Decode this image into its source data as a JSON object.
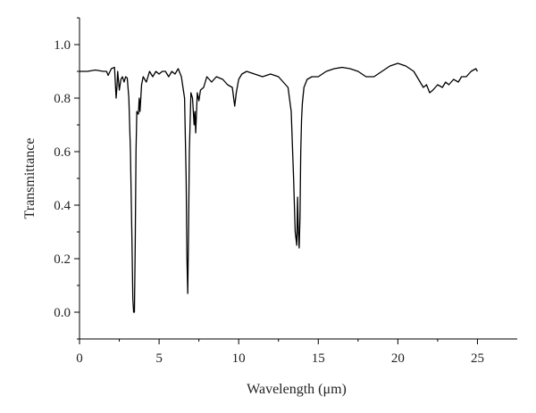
{
  "chart_data": {
    "type": "line",
    "xlabel": "Wavelength (μm)",
    "ylabel": "Transmittance",
    "xlim": [
      0,
      27.5
    ],
    "ylim": [
      -0.1,
      1.1
    ],
    "x_major_ticks": [
      0,
      5,
      10,
      15,
      20,
      25
    ],
    "x_tick_labels": [
      "0",
      "5",
      "10",
      "15",
      "20",
      "25"
    ],
    "y_major_ticks": [
      0.0,
      0.2,
      0.4,
      0.6,
      0.8,
      1.0
    ],
    "y_tick_labels": [
      "0.0",
      "0.2",
      "0.4",
      "0.6",
      "0.8",
      "1.0"
    ],
    "grid": false,
    "series": [
      {
        "color": "#000000",
        "x": [
          0.0,
          0.5,
          1.0,
          1.5,
          1.7,
          1.8,
          2.0,
          2.2,
          2.3,
          2.35,
          2.4,
          2.5,
          2.6,
          2.7,
          2.8,
          2.9,
          3.0,
          3.1,
          3.2,
          3.3,
          3.35,
          3.4,
          3.45,
          3.5,
          3.55,
          3.6,
          3.7,
          3.75,
          3.8,
          3.9,
          4.0,
          4.2,
          4.4,
          4.6,
          4.8,
          5.0,
          5.2,
          5.4,
          5.6,
          5.8,
          6.0,
          6.2,
          6.4,
          6.6,
          6.7,
          6.75,
          6.8,
          6.85,
          6.9,
          7.0,
          7.1,
          7.2,
          7.25,
          7.3,
          7.4,
          7.5,
          7.6,
          7.8,
          8.0,
          8.3,
          8.6,
          9.0,
          9.3,
          9.6,
          9.75,
          9.85,
          10.0,
          10.2,
          10.5,
          11.0,
          11.5,
          12.0,
          12.5,
          12.8,
          13.1,
          13.3,
          13.45,
          13.55,
          13.65,
          13.7,
          13.75,
          13.8,
          13.85,
          13.9,
          13.95,
          14.0,
          14.1,
          14.3,
          14.6,
          15.0,
          15.5,
          16.0,
          16.5,
          17.0,
          17.5,
          18.0,
          18.5,
          19.0,
          19.5,
          20.0,
          20.5,
          21.0,
          21.3,
          21.6,
          21.8,
          22.0,
          22.2,
          22.5,
          22.8,
          23.0,
          23.2,
          23.5,
          23.8,
          24.0,
          24.3,
          24.6,
          24.9,
          25.0
        ],
        "y": [
          0.9,
          0.9,
          0.905,
          0.9,
          0.9,
          0.885,
          0.91,
          0.915,
          0.8,
          0.84,
          0.9,
          0.83,
          0.87,
          0.88,
          0.86,
          0.88,
          0.875,
          0.8,
          0.6,
          0.25,
          0.05,
          0.0,
          0.0,
          0.25,
          0.6,
          0.75,
          0.74,
          0.8,
          0.75,
          0.85,
          0.88,
          0.86,
          0.9,
          0.88,
          0.9,
          0.89,
          0.9,
          0.9,
          0.88,
          0.9,
          0.89,
          0.91,
          0.88,
          0.8,
          0.5,
          0.2,
          0.07,
          0.3,
          0.6,
          0.82,
          0.8,
          0.7,
          0.75,
          0.67,
          0.82,
          0.79,
          0.83,
          0.84,
          0.88,
          0.86,
          0.88,
          0.87,
          0.85,
          0.84,
          0.77,
          0.82,
          0.87,
          0.89,
          0.9,
          0.89,
          0.88,
          0.89,
          0.88,
          0.86,
          0.84,
          0.75,
          0.5,
          0.3,
          0.25,
          0.43,
          0.3,
          0.24,
          0.35,
          0.6,
          0.72,
          0.78,
          0.84,
          0.87,
          0.88,
          0.88,
          0.9,
          0.91,
          0.915,
          0.91,
          0.9,
          0.88,
          0.88,
          0.9,
          0.92,
          0.93,
          0.92,
          0.9,
          0.87,
          0.84,
          0.85,
          0.82,
          0.83,
          0.85,
          0.84,
          0.86,
          0.85,
          0.87,
          0.86,
          0.88,
          0.88,
          0.9,
          0.91,
          0.9
        ]
      }
    ]
  }
}
